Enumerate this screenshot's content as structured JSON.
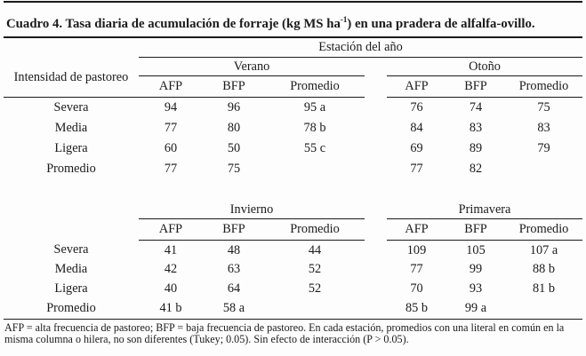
{
  "title": {
    "text": "Cuadro 4. Tasa diaria de acumulación de forraje (kg MS ha",
    "superscript": "-1",
    "tail": ") en una pradera de alfalfa-ovillo."
  },
  "table": {
    "span_header": "Estación del año",
    "stub_header": "Intensidad de pastoreo",
    "col_headers": {
      "afp": "AFP",
      "bfp": "BFP",
      "prom": "Promedio"
    },
    "upper": {
      "left_season": "Verano",
      "right_season": "Otoño",
      "rows": [
        {
          "label": "Severa",
          "l": [
            "94",
            "96",
            "95 a"
          ],
          "r": [
            "76",
            "74",
            "75"
          ]
        },
        {
          "label": "Media",
          "l": [
            "77",
            "80",
            "78 b"
          ],
          "r": [
            "84",
            "83",
            "83"
          ]
        },
        {
          "label": "Ligera",
          "l": [
            "60",
            "50",
            "55 c"
          ],
          "r": [
            "69",
            "89",
            "79"
          ]
        },
        {
          "label": "Promedio",
          "l": [
            "77",
            "75",
            ""
          ],
          "r": [
            "77",
            "82",
            ""
          ]
        }
      ]
    },
    "lower": {
      "left_season": "Invierno",
      "right_season": "Primavera",
      "rows": [
        {
          "label": "Severa",
          "l": [
            "41",
            "48",
            "44"
          ],
          "r": [
            "109",
            "105",
            "107 a"
          ]
        },
        {
          "label": "Media",
          "l": [
            "42",
            "63",
            "52"
          ],
          "r": [
            "77",
            "99",
            "88 b"
          ]
        },
        {
          "label": "Ligera",
          "l": [
            "40",
            "64",
            "52"
          ],
          "r": [
            "70",
            "93",
            "81 b"
          ]
        },
        {
          "label": "Promedio",
          "l": [
            "41 b",
            "58 a",
            ""
          ],
          "r": [
            "85 b",
            "99 a",
            ""
          ]
        }
      ]
    }
  },
  "footnote": {
    "lines": [
      "AFP = alta frecuencia de pastoreo; BFP = baja frecuencia de pastoreo. En cada estación, promedios con una literal en común en la",
      "misma columna o hilera, no son diferentes (Tukey; 0.05). Sin efecto de interacción (P > 0.05)."
    ]
  }
}
